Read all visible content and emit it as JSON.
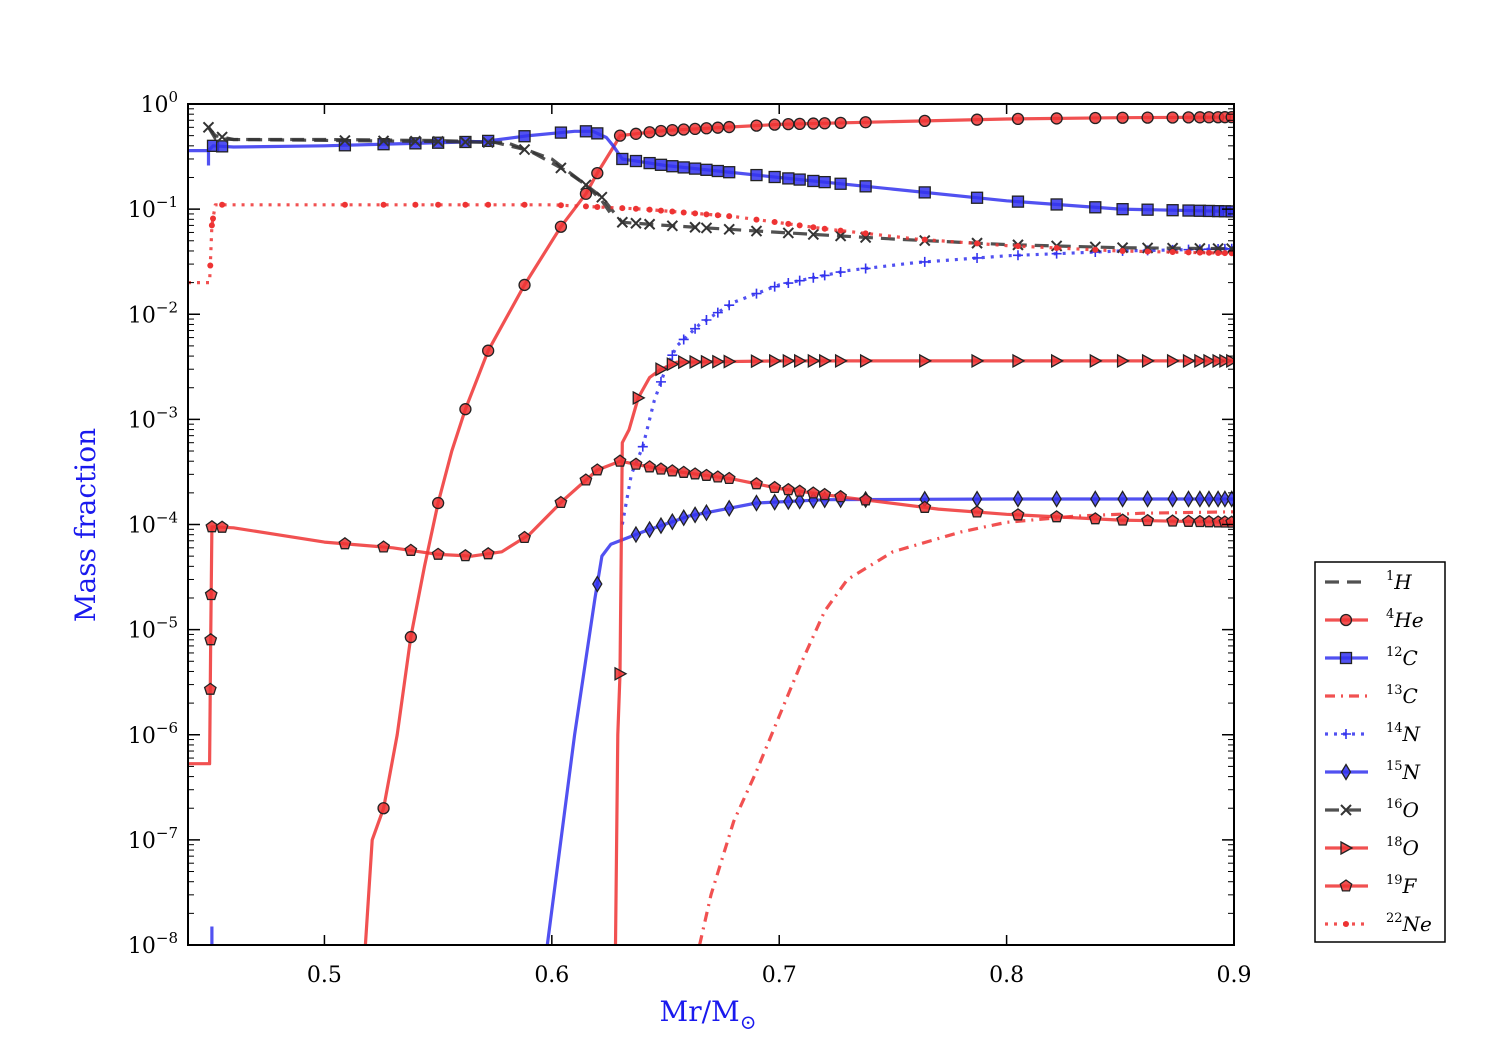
{
  "chart_data": {
    "type": "line",
    "title": "",
    "xlabel": "Mr/M",
    "xlabel_sub": "⊙",
    "ylabel": "Mass fraction",
    "xlim": [
      0.44,
      0.9
    ],
    "ylim": [
      1e-08,
      1
    ],
    "yscale": "log",
    "x_ticks": [
      {
        "value": 0.5,
        "label": "0.5"
      },
      {
        "value": 0.6,
        "label": "0.6"
      },
      {
        "value": 0.7,
        "label": "0.7"
      },
      {
        "value": 0.8,
        "label": "0.8"
      },
      {
        "value": 0.9,
        "label": "0.9"
      }
    ],
    "y_ticks": [
      {
        "exp": 0,
        "base": "10",
        "sup": "0"
      },
      {
        "exp": -1,
        "base": "10",
        "sup": "−1"
      },
      {
        "exp": -2,
        "base": "10",
        "sup": "−2"
      },
      {
        "exp": -3,
        "base": "10",
        "sup": "−3"
      },
      {
        "exp": -4,
        "base": "10",
        "sup": "−4"
      },
      {
        "exp": -5,
        "base": "10",
        "sup": "−5"
      },
      {
        "exp": -6,
        "base": "10",
        "sup": "−6"
      },
      {
        "exp": -7,
        "base": "10",
        "sup": "−7"
      },
      {
        "exp": -8,
        "base": "10",
        "sup": "−8"
      }
    ],
    "legend_position": "lower-right outside",
    "series": [
      {
        "id": "h1",
        "mass": "1",
        "el": "H",
        "color": "#333333",
        "dash": "14,8",
        "marker": "none",
        "points": [
          [
            0.449,
            0.6
          ],
          [
            0.452,
            0.47
          ],
          [
            0.46,
            0.46
          ],
          [
            0.5,
            0.46
          ],
          [
            0.55,
            0.45
          ],
          [
            0.58,
            0.43
          ],
          [
            0.6,
            0.3
          ],
          [
            0.615,
            0.17
          ],
          [
            0.622,
            0.12
          ],
          [
            0.626,
            0.09
          ]
        ]
      },
      {
        "id": "he4",
        "mass": "4",
        "el": "He",
        "color": "#ee3333",
        "dash": "",
        "marker": "circle",
        "points": [
          [
            0.518,
            1e-08
          ],
          [
            0.521,
            1e-07
          ],
          [
            0.526,
            2e-07
          ],
          [
            0.532,
            1e-06
          ],
          [
            0.538,
            8.5e-06
          ],
          [
            0.544,
            4e-05
          ],
          [
            0.55,
            0.00016
          ],
          [
            0.556,
            0.0005
          ],
          [
            0.562,
            0.00125
          ],
          [
            0.572,
            0.0045
          ],
          [
            0.588,
            0.019
          ],
          [
            0.604,
            0.068
          ],
          [
            0.615,
            0.14
          ],
          [
            0.62,
            0.22
          ],
          [
            0.628,
            0.42
          ],
          [
            0.63,
            0.5
          ],
          [
            0.65,
            0.56
          ],
          [
            0.7,
            0.64
          ],
          [
            0.75,
            0.68
          ],
          [
            0.8,
            0.72
          ],
          [
            0.85,
            0.74
          ],
          [
            0.9,
            0.75
          ]
        ],
        "markers": [
          0.526,
          0.538,
          0.55,
          0.562,
          0.572,
          0.588,
          0.604,
          0.615,
          0.62,
          0.63,
          0.637,
          0.643,
          0.648,
          0.653,
          0.658,
          0.663,
          0.668,
          0.673,
          0.678,
          0.69,
          0.698,
          0.704,
          0.709,
          0.715,
          0.72,
          0.727,
          0.738,
          0.764,
          0.787,
          0.805,
          0.822,
          0.839,
          0.851,
          0.862,
          0.873,
          0.88,
          0.885,
          0.889,
          0.893,
          0.896,
          0.899
        ],
        "marker_curve": [
          [
            0.526,
            2e-07
          ],
          [
            0.538,
            8.5e-06
          ],
          [
            0.55,
            0.00016
          ],
          [
            0.562,
            0.00125
          ],
          [
            0.572,
            0.0045
          ],
          [
            0.588,
            0.019
          ],
          [
            0.604,
            0.068
          ],
          [
            0.615,
            0.14
          ],
          [
            0.62,
            0.22
          ],
          [
            0.63,
            0.5
          ],
          [
            0.65,
            0.56
          ],
          [
            0.7,
            0.64
          ],
          [
            0.75,
            0.68
          ],
          [
            0.8,
            0.72
          ],
          [
            0.85,
            0.74
          ],
          [
            0.9,
            0.75
          ]
        ]
      },
      {
        "id": "c12",
        "mass": "12",
        "el": "C",
        "color": "#3333ee",
        "dash": "",
        "marker": "square",
        "points": [
          [
            0.44,
            0.36
          ],
          [
            0.449,
            0.36
          ],
          [
            0.451,
            0.4
          ],
          [
            0.46,
            0.39
          ],
          [
            0.5,
            0.4
          ],
          [
            0.57,
            0.44
          ],
          [
            0.59,
            0.5
          ],
          [
            0.61,
            0.55
          ],
          [
            0.618,
            0.55
          ],
          [
            0.624,
            0.48
          ],
          [
            0.627,
            0.4
          ],
          [
            0.631,
            0.3
          ],
          [
            0.65,
            0.26
          ],
          [
            0.7,
            0.2
          ],
          [
            0.75,
            0.155
          ],
          [
            0.8,
            0.12
          ],
          [
            0.85,
            0.1
          ],
          [
            0.9,
            0.095
          ]
        ],
        "spike": [
          [
            0.449,
            0.36
          ],
          [
            0.449,
            0.26
          ]
        ],
        "spike2": [
          [
            0.4505,
            1e-08
          ],
          [
            0.4505,
            1.5e-08
          ]
        ],
        "markers": [
          0.451,
          0.455,
          0.509,
          0.526,
          0.54,
          0.55,
          0.562,
          0.572,
          0.588,
          0.604,
          0.615,
          0.62,
          0.631,
          0.637,
          0.643,
          0.648,
          0.653,
          0.658,
          0.663,
          0.668,
          0.673,
          0.678,
          0.69,
          0.698,
          0.704,
          0.709,
          0.715,
          0.72,
          0.727,
          0.738,
          0.764,
          0.787,
          0.805,
          0.822,
          0.839,
          0.851,
          0.862,
          0.873,
          0.88,
          0.885,
          0.889,
          0.893,
          0.896,
          0.899
        ]
      },
      {
        "id": "c13",
        "mass": "13",
        "el": "C",
        "color": "#ee3333",
        "dash": "10,6,2,6",
        "marker": "none",
        "points": [
          [
            0.665,
            1e-08
          ],
          [
            0.67,
            3e-08
          ],
          [
            0.68,
            1.5e-07
          ],
          [
            0.69,
            4.5e-07
          ],
          [
            0.7,
            1.5e-06
          ],
          [
            0.71,
            5e-06
          ],
          [
            0.72,
            1.5e-05
          ],
          [
            0.73,
            3e-05
          ],
          [
            0.75,
            5.5e-05
          ],
          [
            0.78,
            8.5e-05
          ],
          [
            0.8,
            0.000105
          ],
          [
            0.83,
            0.00012
          ],
          [
            0.86,
            0.000128
          ],
          [
            0.9,
            0.000132
          ]
        ]
      },
      {
        "id": "n14",
        "mass": "14",
        "el": "N",
        "color": "#3333ee",
        "dash": "3,6",
        "marker": "plus",
        "points": [
          [
            0.631,
            0.0001
          ],
          [
            0.635,
            0.0003
          ],
          [
            0.64,
            0.00055
          ],
          [
            0.645,
            0.0015
          ],
          [
            0.65,
            0.003
          ],
          [
            0.655,
            0.005
          ],
          [
            0.665,
            0.008
          ],
          [
            0.68,
            0.013
          ],
          [
            0.7,
            0.019
          ],
          [
            0.73,
            0.026
          ],
          [
            0.76,
            0.031
          ],
          [
            0.8,
            0.036
          ],
          [
            0.85,
            0.04
          ],
          [
            0.9,
            0.042
          ]
        ],
        "markers": [
          0.64,
          0.648,
          0.653,
          0.658,
          0.663,
          0.668,
          0.673,
          0.678,
          0.69,
          0.698,
          0.704,
          0.709,
          0.715,
          0.72,
          0.727,
          0.738,
          0.764,
          0.787,
          0.805,
          0.822,
          0.839,
          0.851,
          0.862,
          0.873,
          0.88,
          0.885,
          0.889,
          0.893,
          0.896,
          0.899
        ]
      },
      {
        "id": "n15",
        "mass": "15",
        "el": "N",
        "color": "#3333ee",
        "dash": "",
        "marker": "diamond",
        "points": [
          [
            0.598,
            1e-08
          ],
          [
            0.61,
            1e-06
          ],
          [
            0.619,
            2e-05
          ],
          [
            0.622,
            5e-05
          ],
          [
            0.626,
            6.5e-05
          ],
          [
            0.64,
            8.5e-05
          ],
          [
            0.66,
            0.00012
          ],
          [
            0.69,
            0.00016
          ],
          [
            0.72,
            0.000172
          ],
          [
            0.8,
            0.000175
          ],
          [
            0.9,
            0.000175
          ]
        ],
        "markers": [
          0.62,
          0.637,
          0.643,
          0.648,
          0.653,
          0.658,
          0.663,
          0.668,
          0.678,
          0.69,
          0.698,
          0.704,
          0.709,
          0.715,
          0.72,
          0.727,
          0.738,
          0.764,
          0.787,
          0.805,
          0.822,
          0.839,
          0.851,
          0.862,
          0.873,
          0.88,
          0.885,
          0.889,
          0.893,
          0.896,
          0.899
        ]
      },
      {
        "id": "o16",
        "mass": "16",
        "el": "O",
        "color": "#333333",
        "dash": "14,8",
        "marker": "x",
        "points": [
          [
            0.449,
            0.6
          ],
          [
            0.452,
            0.5
          ],
          [
            0.46,
            0.46
          ],
          [
            0.55,
            0.44
          ],
          [
            0.575,
            0.43
          ],
          [
            0.59,
            0.36
          ],
          [
            0.605,
            0.24
          ],
          [
            0.615,
            0.17
          ],
          [
            0.622,
            0.13
          ],
          [
            0.627,
            0.095
          ],
          [
            0.631,
            0.075
          ],
          [
            0.65,
            0.07
          ],
          [
            0.7,
            0.06
          ],
          [
            0.75,
            0.052
          ],
          [
            0.8,
            0.046
          ],
          [
            0.85,
            0.043
          ],
          [
            0.9,
            0.042
          ]
        ],
        "markers": [
          0.449,
          0.455,
          0.509,
          0.526,
          0.54,
          0.55,
          0.562,
          0.572,
          0.588,
          0.604,
          0.615,
          0.622,
          0.631,
          0.637,
          0.643,
          0.653,
          0.663,
          0.668,
          0.678,
          0.69,
          0.704,
          0.715,
          0.727,
          0.738,
          0.764,
          0.787,
          0.805,
          0.822,
          0.839,
          0.851,
          0.862,
          0.873,
          0.885,
          0.893,
          0.899
        ]
      },
      {
        "id": "o18",
        "mass": "18",
        "el": "O",
        "color": "#ee3333",
        "dash": "",
        "marker": "triangle",
        "points": [
          [
            0.628,
            1e-08
          ],
          [
            0.629,
            1e-06
          ],
          [
            0.63,
            3.8e-06
          ],
          [
            0.631,
            0.0006
          ],
          [
            0.634,
            0.0008
          ],
          [
            0.638,
            0.0016
          ],
          [
            0.643,
            0.0025
          ],
          [
            0.648,
            0.003
          ],
          [
            0.655,
            0.0035
          ],
          [
            0.7,
            0.0036
          ],
          [
            0.9,
            0.0036
          ]
        ],
        "markers": [
          0.63,
          0.638,
          0.648,
          0.653,
          0.658,
          0.663,
          0.668,
          0.673,
          0.678,
          0.69,
          0.698,
          0.704,
          0.709,
          0.715,
          0.72,
          0.727,
          0.738,
          0.764,
          0.787,
          0.805,
          0.822,
          0.839,
          0.851,
          0.862,
          0.873,
          0.88,
          0.885,
          0.889,
          0.893,
          0.896,
          0.899
        ]
      },
      {
        "id": "f19",
        "mass": "19",
        "el": "F",
        "color": "#ee3333",
        "dash": "",
        "marker": "pentagon",
        "points": [
          [
            0.44,
            5.3e-07
          ],
          [
            0.4495,
            5.3e-07
          ],
          [
            0.45,
            8e-06
          ],
          [
            0.4505,
            9.5e-05
          ],
          [
            0.46,
            9.3e-05
          ],
          [
            0.5,
            6.8e-05
          ],
          [
            0.53,
            6e-05
          ],
          [
            0.55,
            5.2e-05
          ],
          [
            0.565,
            5e-05
          ],
          [
            0.578,
            5.5e-05
          ],
          [
            0.59,
            8e-05
          ],
          [
            0.605,
            0.00017
          ],
          [
            0.62,
            0.00033
          ],
          [
            0.63,
            0.0004
          ],
          [
            0.65,
            0.00033
          ],
          [
            0.68,
            0.00027
          ],
          [
            0.7,
            0.00022
          ],
          [
            0.73,
            0.00018
          ],
          [
            0.77,
            0.00014
          ],
          [
            0.8,
            0.000125
          ],
          [
            0.85,
            0.00011
          ],
          [
            0.9,
            0.000105
          ]
        ],
        "markers": [
          0.4498,
          0.45,
          0.4502,
          0.4505,
          0.455,
          0.509,
          0.526,
          0.538,
          0.55,
          0.562,
          0.572,
          0.588,
          0.604,
          0.615,
          0.62,
          0.63,
          0.637,
          0.643,
          0.648,
          0.653,
          0.658,
          0.663,
          0.668,
          0.673,
          0.678,
          0.69,
          0.698,
          0.704,
          0.709,
          0.715,
          0.72,
          0.727,
          0.738,
          0.764,
          0.787,
          0.805,
          0.822,
          0.839,
          0.851,
          0.862,
          0.873,
          0.88,
          0.885,
          0.889,
          0.893,
          0.896,
          0.899
        ]
      },
      {
        "id": "ne22",
        "mass": "22",
        "el": "Ne",
        "color": "#ee3333",
        "dash": "3,6",
        "marker": "dot",
        "points": [
          [
            0.44,
            0.02
          ],
          [
            0.4495,
            0.02
          ],
          [
            0.4505,
            0.07
          ],
          [
            0.452,
            0.11
          ],
          [
            0.46,
            0.11
          ],
          [
            0.6,
            0.11
          ],
          [
            0.64,
            0.1
          ],
          [
            0.68,
            0.085
          ],
          [
            0.72,
            0.065
          ],
          [
            0.76,
            0.052
          ],
          [
            0.8,
            0.045
          ],
          [
            0.85,
            0.04
          ],
          [
            0.9,
            0.038
          ]
        ],
        "markers": [
          0.4498,
          0.4505,
          0.451,
          0.455,
          0.509,
          0.526,
          0.54,
          0.55,
          0.562,
          0.572,
          0.588,
          0.604,
          0.615,
          0.62,
          0.631,
          0.637,
          0.643,
          0.648,
          0.653,
          0.658,
          0.663,
          0.668,
          0.673,
          0.678,
          0.69,
          0.698,
          0.704,
          0.709,
          0.715,
          0.72,
          0.727,
          0.738,
          0.764,
          0.787,
          0.805,
          0.822,
          0.839,
          0.851,
          0.862,
          0.873,
          0.88,
          0.885,
          0.889,
          0.893,
          0.896,
          0.899
        ]
      }
    ]
  }
}
